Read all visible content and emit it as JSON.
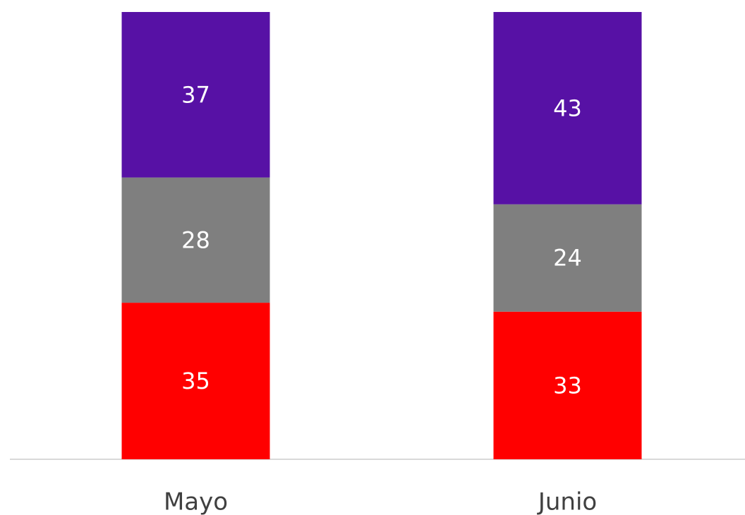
{
  "chart_data": {
    "type": "stacked_bar",
    "categories": [
      "Mayo",
      "Junio"
    ],
    "series": [
      {
        "color": "#ff0000",
        "values": [
          35,
          33
        ]
      },
      {
        "color": "#7f7f7f",
        "values": [
          28,
          24
        ]
      },
      {
        "color": "#5711a5",
        "values": [
          37,
          43
        ]
      }
    ],
    "ylim": [
      0,
      100
    ]
  }
}
